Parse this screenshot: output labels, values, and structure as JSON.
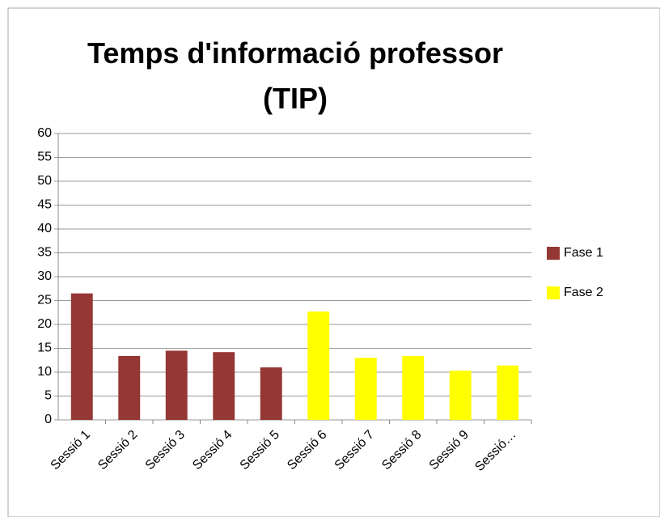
{
  "chart_data": {
    "type": "bar",
    "title": "Temps d'informació professor (TIP)",
    "categories": [
      "Sessió 1",
      "Sessió 2",
      "Sessió 3",
      "Sessió 4",
      "Sessió 5",
      "Sessió 6",
      "Sessió 7",
      "Sessió 8",
      "Sessió 9",
      "Sessió…"
    ],
    "series": [
      {
        "name": "Fase 1",
        "color": "#953735",
        "values": [
          26.5,
          13.4,
          14.5,
          14.2,
          11,
          null,
          null,
          null,
          null,
          null
        ]
      },
      {
        "name": "Fase 2",
        "color": "#ffff00",
        "values": [
          null,
          null,
          null,
          null,
          null,
          22.7,
          13,
          13.4,
          10.3,
          11.4
        ]
      }
    ],
    "ylim": [
      0,
      60
    ],
    "yticks": [
      0,
      5,
      10,
      15,
      20,
      25,
      30,
      35,
      40,
      45,
      50,
      55,
      60
    ],
    "grid": true,
    "legend": "right"
  }
}
